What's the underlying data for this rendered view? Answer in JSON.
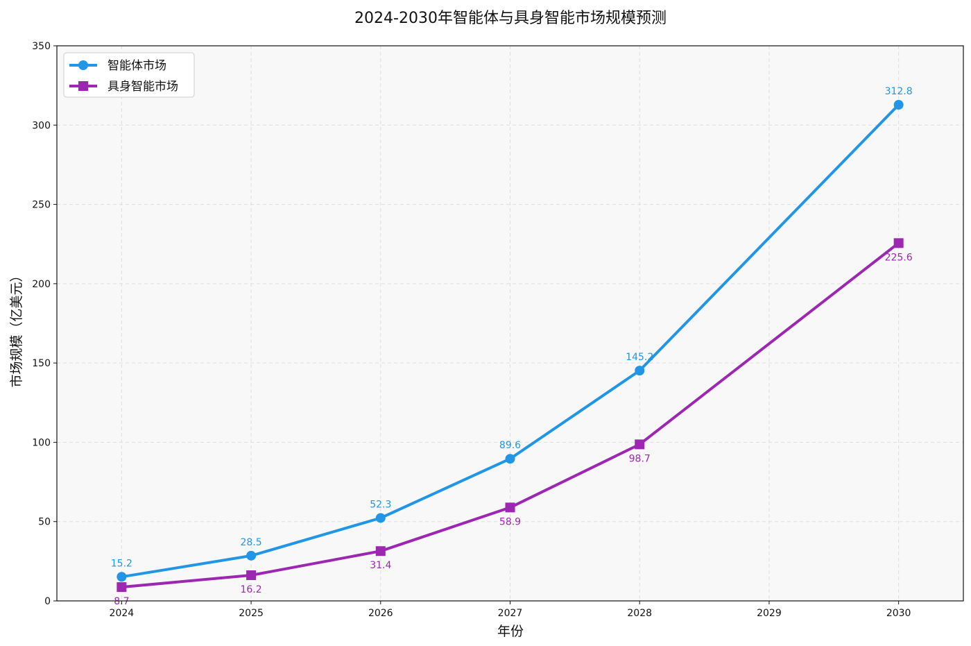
{
  "chart_data": {
    "type": "line",
    "title": "2024-2030年智能体与具身智能市场规模预测",
    "xlabel": "年份",
    "ylabel": "市场规模（亿美元）",
    "x": [
      2024,
      2025,
      2026,
      2027,
      2028,
      2029,
      2030
    ],
    "x_tick_labels": [
      "2024",
      "2025",
      "2026",
      "2027",
      "2028",
      "2029",
      "2030"
    ],
    "xlim": [
      2023.5,
      2030.5
    ],
    "ylim": [
      0,
      350
    ],
    "y_ticks": [
      0,
      50,
      100,
      150,
      200,
      250,
      300,
      350
    ],
    "y_tick_labels": [
      "0",
      "50",
      "100",
      "150",
      "200",
      "250",
      "300",
      "350"
    ],
    "grid": true,
    "legend_position": "top-left",
    "series": [
      {
        "name": "智能体市场",
        "color": "#2196E6",
        "marker": "circle",
        "label_position": "above",
        "x": [
          2024,
          2025,
          2026,
          2027,
          2028,
          2030
        ],
        "values": [
          15.2,
          28.5,
          52.3,
          89.6,
          145.2,
          312.8
        ],
        "value_labels": [
          "15.2",
          "28.5",
          "52.3",
          "89.6",
          "145.2",
          "312.8"
        ]
      },
      {
        "name": "具身智能市场",
        "color": "#9C27B0",
        "marker": "square",
        "label_position": "below",
        "x": [
          2024,
          2025,
          2026,
          2027,
          2028,
          2030
        ],
        "values": [
          8.7,
          16.2,
          31.4,
          58.9,
          98.7,
          225.6
        ],
        "value_labels": [
          "8.7",
          "16.2",
          "31.4",
          "58.9",
          "98.7",
          "225.6"
        ]
      }
    ]
  }
}
